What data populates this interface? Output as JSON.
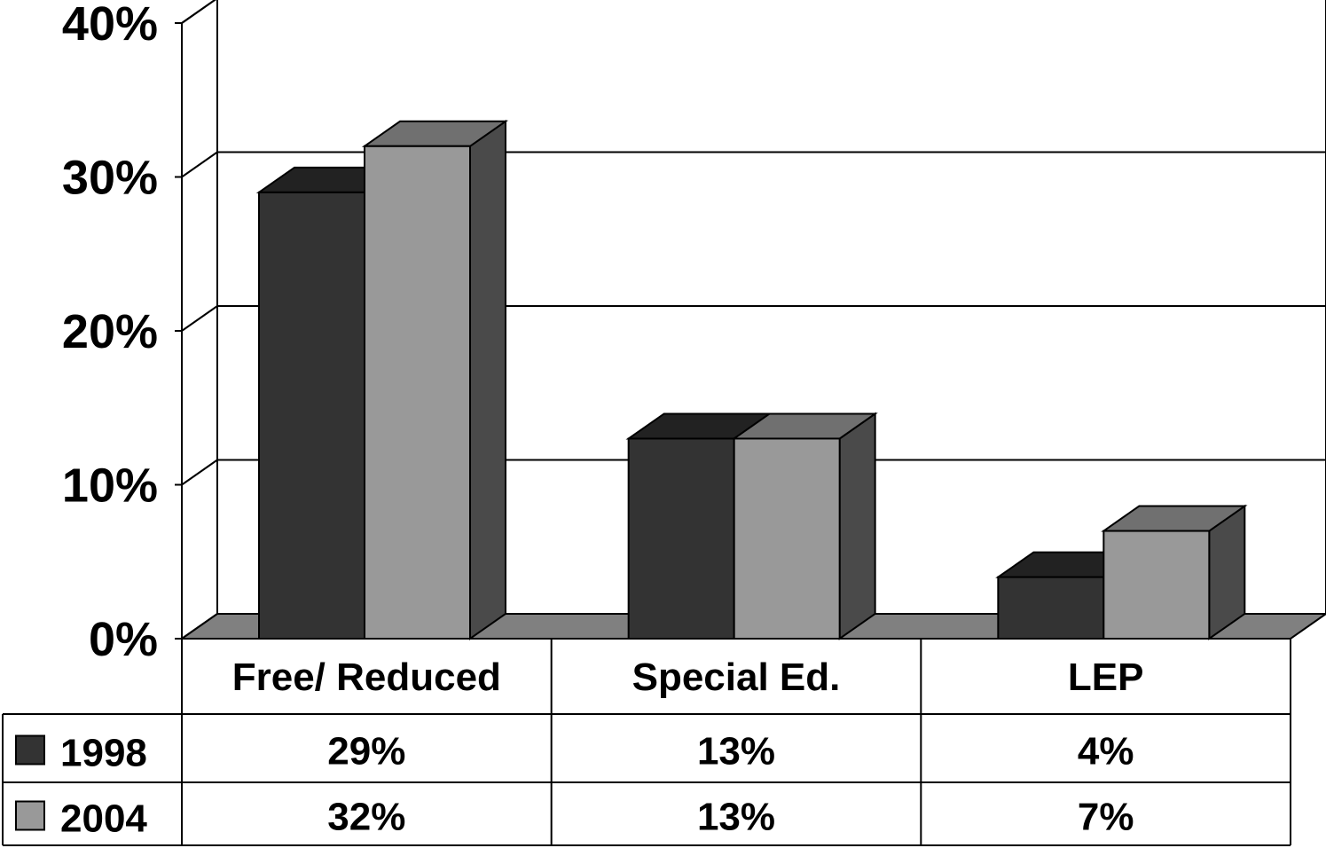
{
  "chart_data": {
    "type": "bar",
    "categories": [
      "Free/ Reduced",
      "Special Ed.",
      "LEP"
    ],
    "series": [
      {
        "name": "1998",
        "values": [
          29,
          13,
          4
        ],
        "labels": [
          "29%",
          "13%",
          "4%"
        ],
        "color": "#333333"
      },
      {
        "name": "2004",
        "values": [
          32,
          13,
          7
        ],
        "labels": [
          "32%",
          "13%",
          "7%"
        ],
        "color": "#999999"
      }
    ],
    "ylim": [
      0,
      40
    ],
    "yticks": [
      0,
      10,
      20,
      30,
      40
    ],
    "ytick_labels": [
      "0%",
      "10%",
      "20%",
      "30%",
      "40%"
    ],
    "title": "",
    "xlabel": "",
    "ylabel": "",
    "grid": true,
    "legend": "data-table",
    "style": "3d-clustered-column"
  }
}
